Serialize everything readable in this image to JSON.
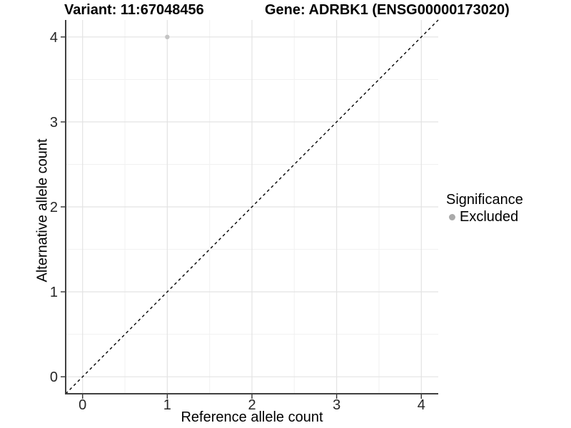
{
  "chart_data": {
    "type": "scatter",
    "titles": {
      "left": "Variant: 11:67048456",
      "right": "Gene: ADRBK1 (ENSG00000173020)"
    },
    "xlabel": "Reference allele count",
    "ylabel": "Alternative allele count",
    "xlim": [
      -0.2,
      4.2
    ],
    "ylim": [
      -0.2,
      4.2
    ],
    "x_ticks": [
      0,
      1,
      2,
      3,
      4
    ],
    "y_ticks": [
      0,
      1,
      2,
      3,
      4
    ],
    "x_minor_ticks": [
      0.5,
      1.5,
      2.5,
      3.5
    ],
    "y_minor_ticks": [
      0.5,
      1.5,
      2.5,
      3.5
    ],
    "grid": "major+minor",
    "identity_line": {
      "style": "dashed",
      "from": -0.2,
      "to": 4.2
    },
    "points": [
      {
        "x": 1,
        "y": 4,
        "significance": "Excluded"
      }
    ],
    "legend": {
      "position": "right",
      "title": "Significance",
      "items": [
        {
          "label": "Excluded",
          "color": "#aaaaaa"
        }
      ]
    },
    "colors": {
      "background": "#ffffff",
      "grid_major": "#e3e3e3",
      "grid_minor": "#f1f1f1",
      "axis_line": "#404040",
      "tick_mark": "#333333",
      "tick_label": "#262626",
      "title_text": "#000000",
      "point_fill": "#c4c4c4",
      "identity_line": "#000000"
    }
  }
}
